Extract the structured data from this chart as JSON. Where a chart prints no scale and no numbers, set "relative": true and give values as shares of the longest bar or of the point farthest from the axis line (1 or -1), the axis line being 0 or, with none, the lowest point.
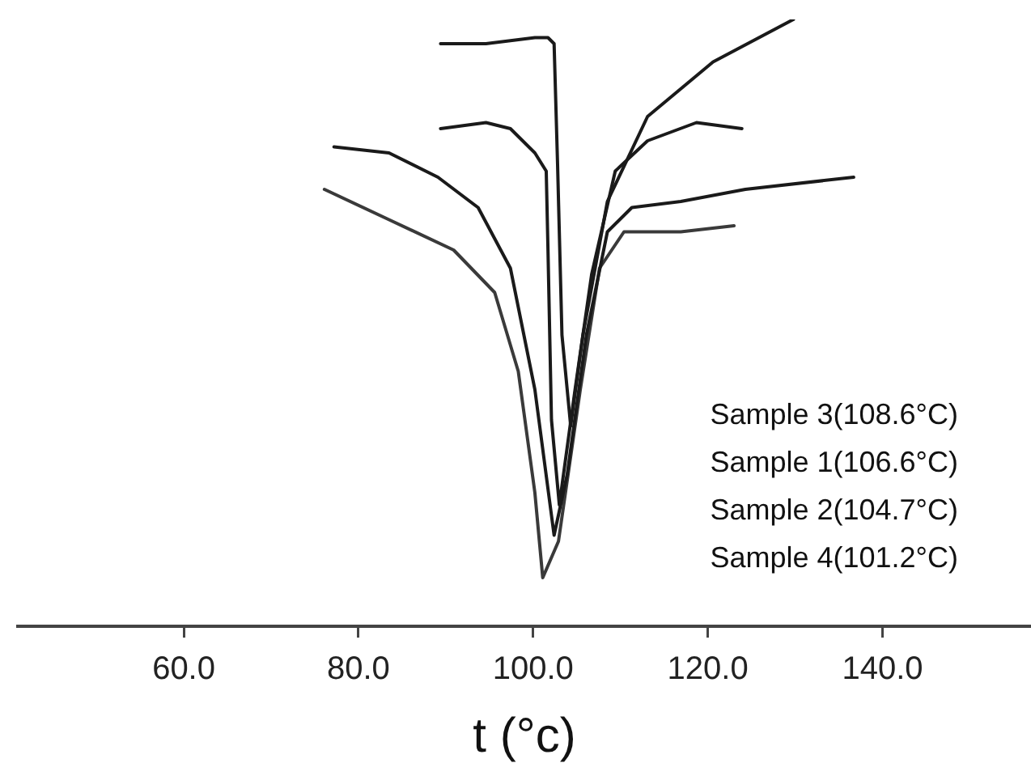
{
  "chart_data": {
    "type": "line",
    "relative": true,
    "xlabel": "t (°c)",
    "xlim": [
      41,
      157
    ],
    "xticks": [
      {
        "value": 60,
        "label": "60.0"
      },
      {
        "value": 80,
        "label": "80.0"
      },
      {
        "value": 100,
        "label": "100.0"
      },
      {
        "value": 120,
        "label": "120.0"
      },
      {
        "value": 140,
        "label": "140.0"
      }
    ],
    "grid": false,
    "legend": false,
    "marker": "none",
    "line_style": "solid",
    "tick_labels": "x",
    "annotations": [
      "Sample 3(108.6°C)",
      "Sample 1(106.6°C)",
      "Sample 2(104.7°C)",
      "Sample 4(101.2°C)"
    ],
    "series": [
      {
        "color": "#1a1a1a",
        "x": [
          89.4,
          94.6,
          100.2,
          101.7,
          102.4,
          102.8,
          103.3,
          104.3,
          105.7,
          108.5,
          113.1,
          120.6,
          129.8
        ],
        "values": [
          0.96,
          0.96,
          0.97,
          0.97,
          0.96,
          0.76,
          0.48,
          0.33,
          0.48,
          0.7,
          0.84,
          0.93,
          1
        ]
      },
      {
        "color": "#1a1a1a",
        "x": [
          89.4,
          94.6,
          97.4,
          100.2,
          101.5,
          101.7,
          102.1,
          103.0,
          104.8,
          106.7,
          109.4,
          113.1,
          118.7,
          123.9
        ],
        "values": [
          0.82,
          0.83,
          0.82,
          0.78,
          0.75,
          0.62,
          0.34,
          0.2,
          0.39,
          0.58,
          0.75,
          0.8,
          0.83,
          0.82
        ]
      },
      {
        "color": "#1a1a1a",
        "x": [
          77.2,
          83.5,
          89.1,
          93.7,
          97.4,
          100.2,
          102.4,
          103.9,
          106.1,
          108.5,
          111.3,
          116.9,
          124.3,
          136.7
        ],
        "values": [
          0.79,
          0.78,
          0.74,
          0.69,
          0.59,
          0.39,
          0.15,
          0.25,
          0.48,
          0.65,
          0.69,
          0.7,
          0.72,
          0.74
        ]
      },
      {
        "color": "#3a3a3a",
        "x": [
          76.1,
          83.5,
          90.9,
          95.6,
          98.3,
          100.2,
          101.1,
          102.9,
          105.4,
          107.6,
          110.4,
          116.9,
          123.0
        ],
        "values": [
          0.72,
          0.67,
          0.62,
          0.55,
          0.42,
          0.22,
          0.08,
          0.14,
          0.39,
          0.59,
          0.65,
          0.65,
          0.66
        ]
      }
    ]
  }
}
